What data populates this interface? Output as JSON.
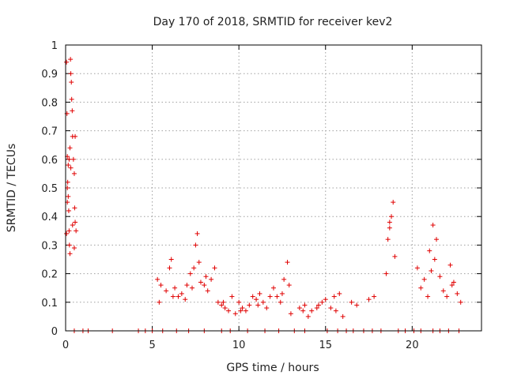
{
  "chart_data": {
    "type": "scatter",
    "title": "Day 170 of 2018, SRMTID for receiver kev2",
    "xlabel": "GPS time / hours",
    "ylabel": "SRMTID / TECUs",
    "xlim": [
      0,
      24
    ],
    "ylim": [
      0,
      1
    ],
    "xticks": [
      0,
      5,
      10,
      15,
      20
    ],
    "yticks": [
      0,
      0.1,
      0.2,
      0.3,
      0.4,
      0.5,
      0.6,
      0.7,
      0.8,
      0.9,
      1
    ],
    "grid": true,
    "marker": "+",
    "color": "#e00000",
    "series": [
      {
        "name": "SRMTID",
        "x": [
          0.05,
          0.08,
          0.1,
          0.12,
          0.15,
          0.18,
          0.2,
          0.22,
          0.25,
          0.28,
          0.3,
          0.33,
          0.35,
          0.38,
          0.4,
          0.45,
          0.5,
          0.52,
          0.55,
          0.6,
          0.05,
          0.1,
          0.15,
          0.2,
          0.25,
          0.3,
          0.4,
          0.5,
          0.55,
          0.1,
          5.3,
          5.5,
          5.8,
          6.0,
          6.1,
          6.3,
          6.5,
          6.7,
          6.9,
          7.0,
          7.2,
          7.4,
          7.5,
          7.6,
          7.8,
          8.0,
          8.2,
          8.4,
          8.6,
          8.8,
          9.0,
          9.2,
          9.4,
          9.6,
          9.8,
          10.0,
          10.2,
          10.4,
          10.6,
          10.8,
          11.0,
          11.2,
          11.4,
          11.6,
          11.8,
          12.0,
          12.2,
          12.4,
          12.6,
          12.8,
          13.0,
          13.5,
          13.8,
          14.0,
          14.2,
          14.5,
          14.8,
          15.0,
          15.3,
          15.6,
          15.8,
          16.0,
          16.5,
          16.8,
          17.5,
          17.8,
          18.5,
          18.6,
          18.7,
          18.8,
          18.9,
          19.0,
          20.3,
          20.5,
          20.7,
          20.9,
          21.0,
          21.2,
          21.4,
          21.6,
          21.8,
          22.0,
          22.2,
          22.4,
          22.6,
          22.8,
          5.4,
          6.2,
          7.3,
          7.7,
          8.1,
          9.1,
          10.1,
          11.1,
          12.5,
          12.9,
          13.7,
          14.6,
          15.5,
          18.7,
          21.1,
          21.3,
          22.3,
          0.5,
          1.0,
          1.3,
          2.7,
          4.2,
          4.6,
          5.0,
          5.6,
          6.4,
          7.1,
          8.0,
          9.0,
          9.5,
          10.5,
          11.5,
          12.3,
          13.2,
          13.8,
          15.1,
          15.7,
          16.2,
          16.6,
          17.2,
          17.7,
          18.2,
          19.2,
          19.6,
          20.1,
          20.5,
          21.2,
          21.6,
          22.1,
          22.7
        ],
        "y": [
          0.94,
          0.76,
          0.61,
          0.52,
          0.47,
          0.42,
          0.35,
          0.3,
          0.27,
          0.95,
          0.9,
          0.87,
          0.81,
          0.77,
          0.68,
          0.6,
          0.55,
          0.43,
          0.38,
          0.35,
          0.34,
          0.5,
          0.58,
          0.6,
          0.64,
          0.57,
          0.37,
          0.29,
          0.68,
          0.45,
          0.18,
          0.16,
          0.14,
          0.22,
          0.25,
          0.15,
          0.12,
          0.13,
          0.11,
          0.16,
          0.2,
          0.22,
          0.3,
          0.34,
          0.17,
          0.16,
          0.14,
          0.18,
          0.22,
          0.1,
          0.09,
          0.08,
          0.07,
          0.12,
          0.06,
          0.1,
          0.08,
          0.07,
          0.09,
          0.12,
          0.11,
          0.13,
          0.1,
          0.08,
          0.12,
          0.15,
          0.12,
          0.1,
          0.18,
          0.24,
          0.06,
          0.08,
          0.09,
          0.05,
          0.07,
          0.08,
          0.1,
          0.11,
          0.08,
          0.07,
          0.13,
          0.05,
          0.1,
          0.09,
          0.11,
          0.12,
          0.2,
          0.32,
          0.36,
          0.4,
          0.45,
          0.26,
          0.22,
          0.15,
          0.18,
          0.12,
          0.28,
          0.37,
          0.32,
          0.19,
          0.14,
          0.12,
          0.23,
          0.17,
          0.13,
          0.1,
          0.1,
          0.12,
          0.15,
          0.24,
          0.19,
          0.1,
          0.07,
          0.09,
          0.13,
          0.16,
          0.07,
          0.09,
          0.12,
          0.38,
          0.21,
          0.25,
          0.16,
          0,
          0,
          0,
          0,
          0,
          0,
          0,
          0,
          0,
          0,
          0,
          0,
          0,
          0,
          0,
          0,
          0,
          0,
          0,
          0,
          0,
          0,
          0,
          0,
          0,
          0,
          0,
          0,
          0,
          0,
          0,
          0,
          0
        ]
      }
    ]
  }
}
